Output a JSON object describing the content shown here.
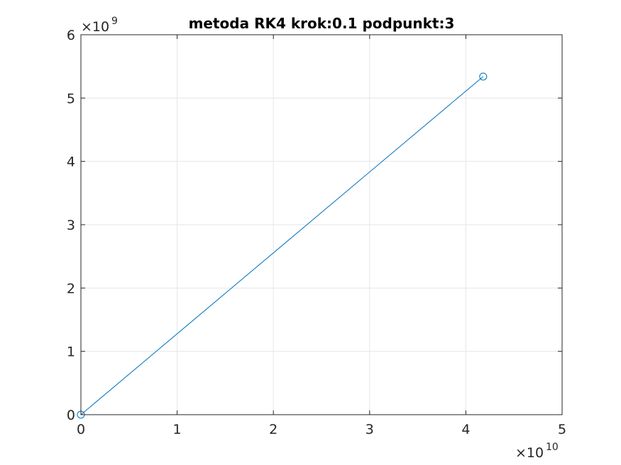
{
  "chart_data": {
    "type": "line",
    "title": "metoda RK4 krok:0.1 podpunkt:3",
    "xlabel": "",
    "ylabel": "",
    "x_multiplier": {
      "base": "×10",
      "exponent": "10"
    },
    "y_multiplier": {
      "base": "×10",
      "exponent": "9"
    },
    "xlim": [
      0,
      5
    ],
    "ylim": [
      0,
      6
    ],
    "xticks": [
      "0",
      "1",
      "2",
      "3",
      "4",
      "5"
    ],
    "yticks": [
      "0",
      "1",
      "2",
      "3",
      "4",
      "5",
      "6"
    ],
    "grid": true,
    "series": [
      {
        "x": [
          0,
          4.18
        ],
        "y": [
          0,
          5.34
        ],
        "color": "#0072bd",
        "markers_at": [
          "start",
          "end"
        ],
        "marker": "circle"
      }
    ]
  }
}
